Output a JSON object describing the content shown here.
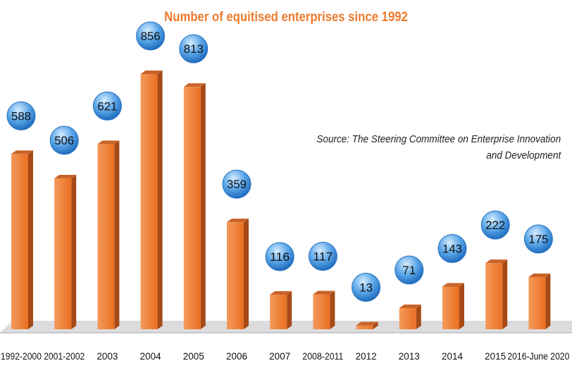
{
  "chart_data": {
    "type": "bar",
    "title": "Number of equitised enterprises since 1992",
    "source_line1": "Source: The Steering Committee on Enterprise Innovation",
    "source_line2": "and Development",
    "xlabel": "",
    "ylabel": "",
    "categories": [
      "1992-2000",
      "2001-2002",
      "2003",
      "2004",
      "2005",
      "2006",
      "2007",
      "2008-2011",
      "2012",
      "2013",
      "2014",
      "2015",
      "2016-June 2020"
    ],
    "values": [
      588,
      506,
      621,
      856,
      813,
      359,
      116,
      117,
      13,
      71,
      143,
      222,
      175
    ],
    "ylim": [
      0,
      900
    ],
    "grid": false,
    "colors": {
      "bar_front": "#ee7a2e",
      "bar_side": "#a54a17",
      "bar_top": "#c8642a",
      "bubble": "#3f8fd8",
      "floor": "#d9d9db"
    }
  }
}
